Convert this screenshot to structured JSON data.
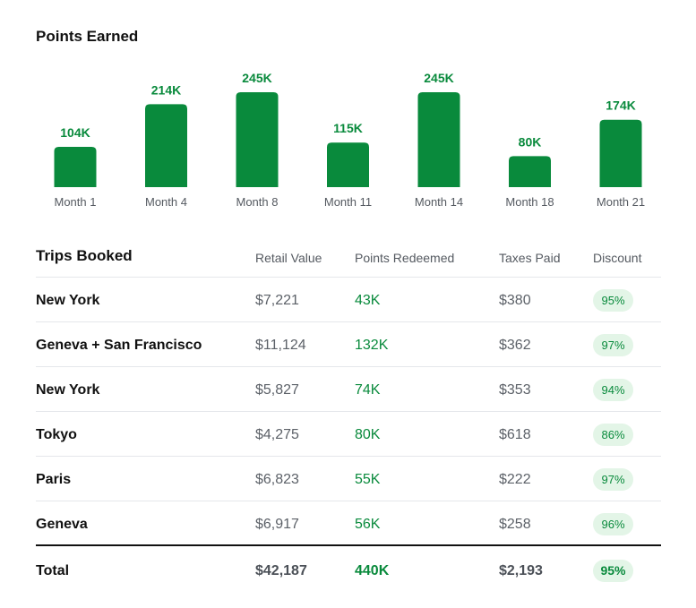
{
  "points_section": {
    "title": "Points Earned"
  },
  "chart_data": {
    "type": "bar",
    "title": "Points Earned",
    "categories": [
      "Month 1",
      "Month 4",
      "Month 8",
      "Month 11",
      "Month 14",
      "Month 18",
      "Month 21"
    ],
    "values": [
      104000,
      214000,
      245000,
      115000,
      245000,
      80000,
      174000
    ],
    "value_labels": [
      "104K",
      "214K",
      "245K",
      "115K",
      "245K",
      "80K",
      "174K"
    ],
    "ylim": [
      0,
      245000
    ],
    "grid": false,
    "color": "#098a3c"
  },
  "trips": {
    "title": "Trips Booked",
    "columns": [
      "Retail Value",
      "Points Redeemed",
      "Taxes Paid",
      "Discount"
    ],
    "rows": [
      {
        "destination": "New York",
        "retail": "$7,221",
        "points": "43K",
        "taxes": "$380",
        "discount": "95%"
      },
      {
        "destination": "Geneva + San Francisco",
        "retail": "$11,124",
        "points": "132K",
        "taxes": "$362",
        "discount": "97%"
      },
      {
        "destination": "New York",
        "retail": "$5,827",
        "points": "74K",
        "taxes": "$353",
        "discount": "94%"
      },
      {
        "destination": "Tokyo",
        "retail": "$4,275",
        "points": "80K",
        "taxes": "$618",
        "discount": "86%"
      },
      {
        "destination": "Paris",
        "retail": "$6,823",
        "points": "55K",
        "taxes": "$222",
        "discount": "97%"
      },
      {
        "destination": "Geneva",
        "retail": "$6,917",
        "points": "56K",
        "taxes": "$258",
        "discount": "96%"
      }
    ],
    "total": {
      "label": "Total",
      "retail": "$42,187",
      "points": "440K",
      "taxes": "$2,193",
      "discount": "95%"
    }
  },
  "colors": {
    "accent": "#098a3c",
    "pill_bg": "#e3f5e7",
    "muted_text": "#5c6168"
  }
}
